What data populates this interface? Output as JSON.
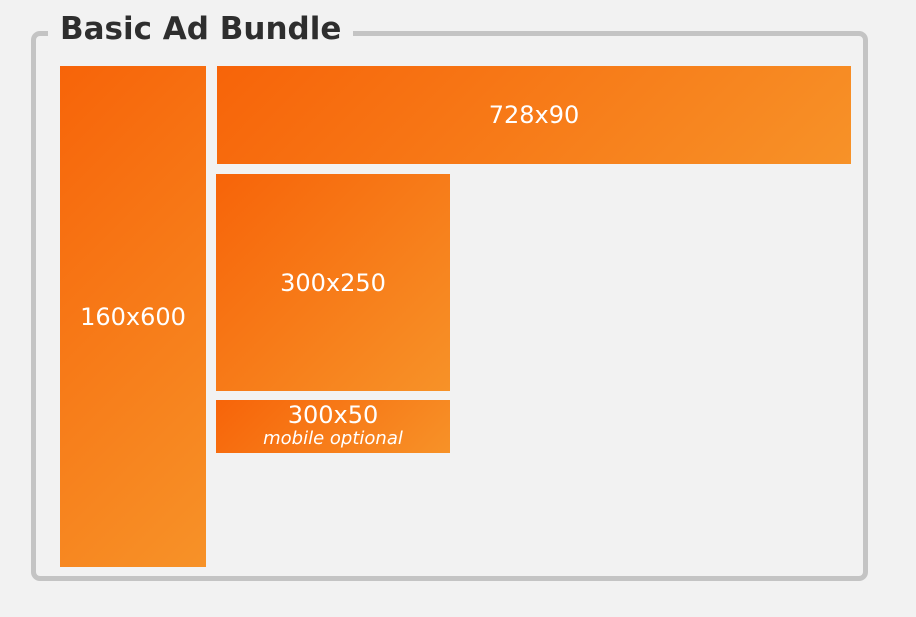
{
  "title": "Basic Ad Bundle",
  "slots": {
    "skyscraper": {
      "label": "160x600"
    },
    "leaderboard": {
      "label": "728x90"
    },
    "medium_rectangle": {
      "label": "300x250"
    },
    "mobile_banner": {
      "label": "300x50",
      "note": "mobile optional"
    }
  },
  "colors": {
    "slot_gradient_start": "#f76409",
    "slot_gradient_end": "#f79228",
    "frame_border": "#c4c4c4",
    "background": "#f2f2f2",
    "title_text": "#2e2e2e",
    "slot_text": "#ffffff"
  }
}
